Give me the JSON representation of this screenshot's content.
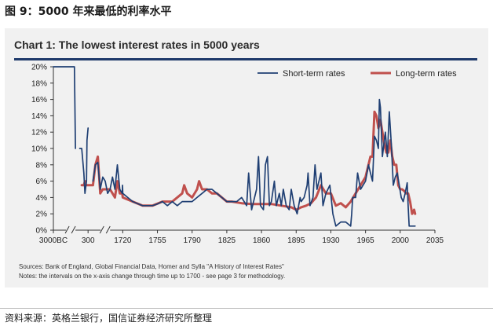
{
  "figure_caption": "图 9：5000 年来最低的利率水平",
  "footer_source": "资料来源：英格兰银行，国信证券经济研究所整理",
  "notes": {
    "sources": "Sources: Bank of England, Global Financial Data, Homer and Sylla \"A History of Interest Rates\"",
    "intervals": "Notes: the intervals on the x-axis change through time up to 1700 - see page 3 for methodology."
  },
  "colors": {
    "short_term": "#1f3f73",
    "long_term": "#c0504d",
    "title_rule": "#1f3a6b"
  },
  "chart_data": {
    "type": "line",
    "title": "Chart 1: The lowest interest rates in 5000 years",
    "xlabel": "",
    "ylabel": "",
    "x_ticks": [
      "3000BC",
      "300",
      "1720",
      "1755",
      "1790",
      "1825",
      "1860",
      "1895",
      "1930",
      "1965",
      "2000",
      "2035"
    ],
    "y_ticks": [
      "0%",
      "2%",
      "4%",
      "6%",
      "8%",
      "10%",
      "12%",
      "14%",
      "16%",
      "18%",
      "20%"
    ],
    "ylim": [
      0,
      20
    ],
    "grid": false,
    "legend_position": "top-right",
    "series": [
      {
        "name": "Short-term rates",
        "color": "#1f3f73",
        "segments": [
          [
            [
              -3000,
              20
            ],
            [
              -2000,
              20
            ],
            [
              -1500,
              20
            ],
            [
              -1000,
              20
            ],
            [
              -900,
              10
            ]
          ],
          [
            [
              -500,
              10
            ],
            [
              -300,
              10
            ],
            [
              -100,
              7
            ],
            [
              0,
              4.5
            ],
            [
              150,
              6
            ],
            [
              200,
              11
            ],
            [
              300,
              12.5
            ]
          ],
          [
            [
              500,
              6
            ],
            [
              600,
              8
            ],
            [
              700,
              8.3
            ],
            [
              800,
              5
            ],
            [
              900,
              6.5
            ],
            [
              1000,
              6
            ],
            [
              1100,
              4.5
            ],
            [
              1200,
              5
            ],
            [
              1300,
              6.5
            ],
            [
              1400,
              5
            ],
            [
              1500,
              8
            ],
            [
              1600,
              5
            ],
            [
              1700,
              4.5
            ],
            [
              1710,
              5.5
            ],
            [
              1720,
              4.5
            ],
            [
              1725,
              4
            ],
            [
              1730,
              3.5
            ],
            [
              1740,
              3
            ],
            [
              1750,
              3
            ],
            [
              1755,
              3.2
            ],
            [
              1760,
              3.5
            ],
            [
              1765,
              3
            ],
            [
              1770,
              3.5
            ],
            [
              1775,
              3
            ],
            [
              1780,
              3.5
            ],
            [
              1785,
              3.5
            ],
            [
              1790,
              3.5
            ],
            [
              1795,
              4
            ],
            [
              1800,
              4.5
            ],
            [
              1805,
              5
            ],
            [
              1810,
              5
            ],
            [
              1815,
              4.5
            ],
            [
              1820,
              4
            ],
            [
              1825,
              3.5
            ],
            [
              1830,
              3.5
            ],
            [
              1835,
              3.5
            ],
            [
              1840,
              4
            ],
            [
              1845,
              3
            ],
            [
              1847,
              7
            ],
            [
              1850,
              2.5
            ],
            [
              1855,
              5
            ],
            [
              1857,
              9
            ],
            [
              1859,
              3
            ],
            [
              1862,
              2.5
            ],
            [
              1864,
              8
            ],
            [
              1866,
              9
            ],
            [
              1868,
              3
            ],
            [
              1870,
              3.5
            ],
            [
              1873,
              6
            ],
            [
              1875,
              3
            ],
            [
              1878,
              4.5
            ],
            [
              1880,
              3
            ],
            [
              1882,
              5
            ],
            [
              1885,
              3
            ],
            [
              1888,
              2.5
            ],
            [
              1890,
              5
            ],
            [
              1893,
              3
            ],
            [
              1896,
              2
            ],
            [
              1899,
              4
            ],
            [
              1900,
              3.5
            ],
            [
              1903,
              4
            ],
            [
              1906,
              5.5
            ],
            [
              1907,
              7
            ],
            [
              1909,
              3
            ],
            [
              1912,
              4
            ],
            [
              1914,
              8
            ],
            [
              1916,
              5
            ],
            [
              1920,
              7
            ],
            [
              1922,
              3
            ],
            [
              1925,
              4.5
            ],
            [
              1929,
              5.5
            ],
            [
              1932,
              2
            ],
            [
              1935,
              0.5
            ],
            [
              1940,
              1
            ],
            [
              1945,
              1
            ],
            [
              1950,
              0.5
            ],
            [
              1951,
              2
            ],
            [
              1952,
              4
            ],
            [
              1955,
              4
            ],
            [
              1957,
              7
            ],
            [
              1960,
              5
            ],
            [
              1965,
              6
            ],
            [
              1968,
              8
            ],
            [
              1970,
              7
            ],
            [
              1972,
              6
            ],
            [
              1974,
              11.5
            ],
            [
              1976,
              11
            ],
            [
              1978,
              10
            ],
            [
              1979,
              16
            ],
            [
              1980,
              15
            ],
            [
              1982,
              9
            ],
            [
              1985,
              12
            ],
            [
              1987,
              9
            ],
            [
              1989,
              14.5
            ],
            [
              1991,
              10.5
            ],
            [
              1993,
              5.5
            ],
            [
              1995,
              6.5
            ],
            [
              1997,
              7
            ],
            [
              1999,
              5.5
            ],
            [
              2001,
              4
            ],
            [
              2003,
              3.5
            ],
            [
              2005,
              4.5
            ],
            [
              2007,
              5.8
            ],
            [
              2008,
              3
            ],
            [
              2009,
              0.5
            ],
            [
              2012,
              0.5
            ],
            [
              2015,
              0.5
            ]
          ]
        ]
      },
      {
        "name": "Long-term rates",
        "color": "#c0504d",
        "segments": [
          [
            [
              -300,
              5.5
            ],
            [
              -100,
              5.5
            ],
            [
              0,
              6
            ],
            [
              100,
              5.5
            ],
            [
              200,
              5.5
            ],
            [
              300,
              5.5
            ],
            [
              400,
              5.5
            ],
            [
              500,
              5.5
            ],
            [
              600,
              8
            ],
            [
              700,
              9
            ],
            [
              800,
              4.5
            ],
            [
              900,
              5
            ],
            [
              1000,
              5
            ],
            [
              1100,
              5
            ],
            [
              1200,
              5
            ],
            [
              1300,
              4.5
            ],
            [
              1400,
              4
            ],
            [
              1500,
              6
            ],
            [
              1600,
              4.5
            ],
            [
              1700,
              4.5
            ],
            [
              1720,
              4
            ],
            [
              1730,
              3.5
            ],
            [
              1740,
              3
            ],
            [
              1750,
              3
            ],
            [
              1760,
              3.5
            ],
            [
              1770,
              3.5
            ],
            [
              1780,
              4.5
            ],
            [
              1782,
              5.5
            ],
            [
              1785,
              4.5
            ],
            [
              1790,
              4
            ],
            [
              1795,
              5
            ],
            [
              1797,
              6
            ],
            [
              1800,
              5
            ],
            [
              1805,
              5
            ],
            [
              1810,
              4.5
            ],
            [
              1815,
              4.5
            ],
            [
              1820,
              4
            ],
            [
              1825,
              3.5
            ],
            [
              1830,
              3.5
            ],
            [
              1840,
              3.3
            ],
            [
              1850,
              3.2
            ],
            [
              1860,
              3.2
            ],
            [
              1870,
              3.2
            ],
            [
              1880,
              3
            ],
            [
              1890,
              2.8
            ],
            [
              1895,
              2.5
            ],
            [
              1900,
              2.8
            ],
            [
              1905,
              3
            ],
            [
              1910,
              3.3
            ],
            [
              1915,
              4
            ],
            [
              1920,
              5.5
            ],
            [
              1925,
              4.5
            ],
            [
              1930,
              4.5
            ],
            [
              1935,
              3
            ],
            [
              1940,
              3.3
            ],
            [
              1945,
              2.8
            ],
            [
              1950,
              3.5
            ],
            [
              1955,
              4.5
            ],
            [
              1960,
              5.5
            ],
            [
              1965,
              6.5
            ],
            [
              1970,
              9
            ],
            [
              1972,
              9
            ],
            [
              1974,
              14.5
            ],
            [
              1976,
              14
            ],
            [
              1978,
              12.5
            ],
            [
              1980,
              13.5
            ],
            [
              1982,
              12
            ],
            [
              1984,
              10.5
            ],
            [
              1986,
              9.5
            ],
            [
              1988,
              9.5
            ],
            [
              1990,
              11
            ],
            [
              1992,
              9
            ],
            [
              1994,
              8
            ],
            [
              1996,
              8
            ],
            [
              1998,
              5.5
            ],
            [
              2000,
              5
            ],
            [
              2002,
              5
            ],
            [
              2004,
              4.8
            ],
            [
              2006,
              4.5
            ],
            [
              2008,
              4.5
            ],
            [
              2010,
              3.5
            ],
            [
              2012,
              2
            ],
            [
              2014,
              2.5
            ],
            [
              2015,
              2
            ]
          ]
        ]
      }
    ]
  }
}
